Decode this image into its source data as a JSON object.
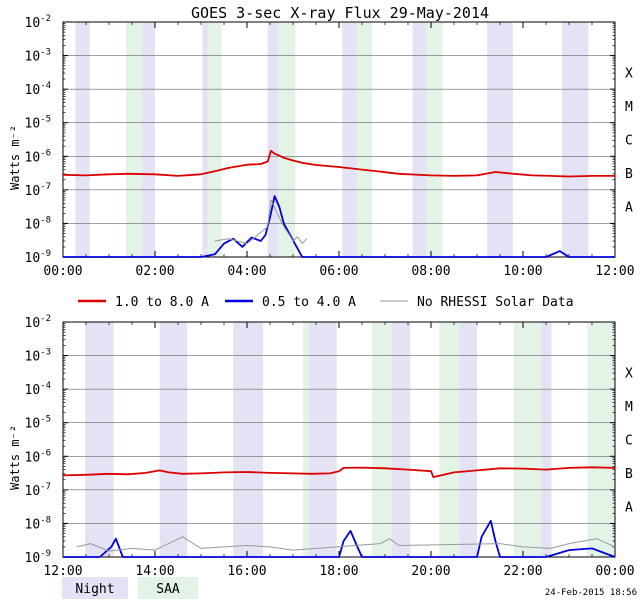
{
  "chart_data": [
    {
      "type": "line",
      "title": "GOES 3-sec X-ray Flux   29-May-2014",
      "ylabel": "Watts m⁻²",
      "y_scale": "log",
      "ylim": [
        1e-09,
        0.01
      ],
      "xlim": [
        0,
        12
      ],
      "x_units": "hours",
      "x_ticks": [
        0,
        2,
        4,
        6,
        8,
        10,
        12
      ],
      "x_tick_labels": [
        "00:00",
        "02:00",
        "04:00",
        "06:00",
        "08:00",
        "10:00",
        "12:00"
      ],
      "y_ticks": [
        1e-09,
        1e-08,
        1e-07,
        1e-06,
        1e-05,
        0.0001,
        0.001,
        0.01
      ],
      "y_tick_labels": [
        {
          "base": "10",
          "exp": "-9"
        },
        {
          "base": "10",
          "exp": "-8"
        },
        {
          "base": "10",
          "exp": "-7"
        },
        {
          "base": "10",
          "exp": "-6"
        },
        {
          "base": "10",
          "exp": "-5"
        },
        {
          "base": "10",
          "exp": "-4"
        },
        {
          "base": "10",
          "exp": "-3"
        },
        {
          "base": "10",
          "exp": "-2"
        }
      ],
      "class_labels": [
        {
          "label": "X",
          "at": 0.0001
        },
        {
          "label": "M",
          "at": 1e-05
        },
        {
          "label": "C",
          "at": 1e-06
        },
        {
          "label": "B",
          "at": 1e-07
        },
        {
          "label": "A",
          "at": 1e-08
        }
      ],
      "grid": true,
      "shaded_intervals": [
        {
          "kind": "night",
          "start": 0.27,
          "end": 0.58
        },
        {
          "kind": "saa",
          "start": 1.37,
          "end": 1.72
        },
        {
          "kind": "night",
          "start": 1.72,
          "end": 2.0
        },
        {
          "kind": "night",
          "start": 3.03,
          "end": 3.15
        },
        {
          "kind": "saa",
          "start": 3.15,
          "end": 3.45
        },
        {
          "kind": "night",
          "start": 4.45,
          "end": 4.68
        },
        {
          "kind": "saa",
          "start": 4.68,
          "end": 5.05
        },
        {
          "kind": "night",
          "start": 6.07,
          "end": 6.38
        },
        {
          "kind": "saa",
          "start": 6.38,
          "end": 6.72
        },
        {
          "kind": "night",
          "start": 7.6,
          "end": 7.9
        },
        {
          "kind": "saa",
          "start": 7.9,
          "end": 8.25
        },
        {
          "kind": "night",
          "start": 9.22,
          "end": 9.78
        },
        {
          "kind": "night",
          "start": 10.85,
          "end": 11.42
        }
      ],
      "series": [
        {
          "key": "long",
          "color": "#dd0000",
          "x": [
            0,
            0.5,
            1.0,
            1.4,
            2.0,
            2.5,
            3.0,
            3.3,
            3.6,
            4.0,
            4.3,
            4.45,
            4.52,
            4.6,
            4.7,
            4.8,
            5.0,
            5.2,
            5.5,
            6.0,
            6.5,
            6.9,
            7.3,
            8.0,
            8.5,
            9.0,
            9.4,
            9.8,
            10.2,
            10.6,
            11.0,
            11.5,
            12.0
          ],
          "y": [
            2.8e-07,
            2.7e-07,
            2.9e-07,
            3e-07,
            2.9e-07,
            2.6e-07,
            2.9e-07,
            3.6e-07,
            4.5e-07,
            5.6e-07,
            5.9e-07,
            7e-07,
            1.45e-06,
            1.2e-06,
            1.05e-06,
            9e-07,
            7.5e-07,
            6.4e-07,
            5.5e-07,
            4.8e-07,
            4e-07,
            3.5e-07,
            3e-07,
            2.7e-07,
            2.6e-07,
            2.7e-07,
            3.4e-07,
            3e-07,
            2.7e-07,
            2.6e-07,
            2.5e-07,
            2.6e-07,
            2.6e-07
          ]
        },
        {
          "key": "short",
          "color": "#0000dd",
          "x": [
            0,
            0.1,
            0.5,
            1.0,
            1.5,
            2.0,
            2.5,
            3.0,
            3.3,
            3.5,
            3.7,
            3.9,
            4.1,
            4.3,
            4.4,
            4.5,
            4.6,
            4.7,
            4.8,
            5.2,
            5.6,
            6.0,
            6.4,
            7.0,
            7.6,
            8.0,
            8.5,
            9.0,
            9.5,
            10.0,
            10.5,
            10.8,
            11.0,
            11.5,
            12.0
          ],
          "y": [
            1e-09,
            1e-09,
            1e-09,
            1e-09,
            1e-09,
            1e-09,
            1e-09,
            1e-09,
            1.2e-09,
            2.5e-09,
            3.5e-09,
            2e-09,
            3.8e-09,
            3e-09,
            4.5e-09,
            1.5e-08,
            6.5e-08,
            3.2e-08,
            1e-08,
            1e-09,
            1e-09,
            1e-09,
            1e-09,
            1e-09,
            1e-09,
            1e-09,
            1e-09,
            1e-09,
            1e-09,
            1e-09,
            1e-09,
            1.5e-09,
            1e-09,
            1e-09,
            1e-09
          ]
        },
        {
          "key": "norhessi",
          "color": "#999999",
          "x": [
            3.3,
            3.6,
            4.0,
            4.45,
            4.52,
            4.6,
            4.7,
            4.8,
            4.9,
            5.0,
            5.1,
            5.2,
            5.3
          ],
          "y": [
            3e-09,
            3.5e-09,
            2.5e-09,
            8e-09,
            5e-08,
            3e-08,
            1.5e-08,
            8e-09,
            5e-09,
            3e-09,
            4e-09,
            2.5e-09,
            3.5e-09
          ]
        }
      ]
    },
    {
      "type": "line",
      "ylabel": "Watts m⁻²",
      "y_scale": "log",
      "ylim": [
        1e-09,
        0.01
      ],
      "xlim": [
        12,
        24
      ],
      "x_units": "hours",
      "x_ticks": [
        12,
        14,
        16,
        18,
        20,
        22,
        24
      ],
      "x_tick_labels": [
        "12:00",
        "14:00",
        "16:00",
        "18:00",
        "20:00",
        "22:00",
        "00:00"
      ],
      "y_ticks": [
        1e-09,
        1e-08,
        1e-07,
        1e-06,
        1e-05,
        0.0001,
        0.001,
        0.01
      ],
      "y_tick_labels": [
        {
          "base": "10",
          "exp": "-9"
        },
        {
          "base": "10",
          "exp": "-8"
        },
        {
          "base": "10",
          "exp": "-7"
        },
        {
          "base": "10",
          "exp": "-6"
        },
        {
          "base": "10",
          "exp": "-5"
        },
        {
          "base": "10",
          "exp": "-4"
        },
        {
          "base": "10",
          "exp": "-3"
        },
        {
          "base": "10",
          "exp": "-2"
        }
      ],
      "class_labels": [
        {
          "label": "X",
          "at": 0.0001
        },
        {
          "label": "M",
          "at": 1e-05
        },
        {
          "label": "C",
          "at": 1e-06
        },
        {
          "label": "B",
          "at": 1e-07
        },
        {
          "label": "A",
          "at": 1e-08
        }
      ],
      "grid": true,
      "shaded_intervals": [
        {
          "kind": "night",
          "start": 12.48,
          "end": 13.1
        },
        {
          "kind": "night",
          "start": 14.1,
          "end": 14.7
        },
        {
          "kind": "night",
          "start": 15.7,
          "end": 16.35
        },
        {
          "kind": "saa",
          "start": 17.22,
          "end": 17.35
        },
        {
          "kind": "night",
          "start": 17.35,
          "end": 17.95
        },
        {
          "kind": "saa",
          "start": 18.72,
          "end": 19.15
        },
        {
          "kind": "night",
          "start": 19.15,
          "end": 19.55
        },
        {
          "kind": "saa",
          "start": 20.18,
          "end": 20.62
        },
        {
          "kind": "night",
          "start": 20.62,
          "end": 21.0
        },
        {
          "kind": "saa",
          "start": 21.8,
          "end": 22.4
        },
        {
          "kind": "night",
          "start": 22.4,
          "end": 22.62
        },
        {
          "kind": "saa",
          "start": 23.4,
          "end": 24.0
        }
      ],
      "series": [
        {
          "key": "long",
          "color": "#dd0000",
          "x": [
            12,
            12.5,
            13.0,
            13.4,
            13.8,
            14.1,
            14.3,
            14.6,
            15.0,
            15.5,
            16.0,
            16.5,
            17.0,
            17.4,
            17.8,
            18.0,
            18.1,
            18.5,
            19.0,
            19.5,
            20.0,
            20.05,
            20.5,
            21.0,
            21.5,
            22.0,
            22.5,
            23.0,
            23.5,
            24.0
          ],
          "y": [
            2.7e-07,
            2.8e-07,
            3e-07,
            2.9e-07,
            3.2e-07,
            3.8e-07,
            3.3e-07,
            3e-07,
            3.1e-07,
            3.3e-07,
            3.4e-07,
            3.2e-07,
            3.1e-07,
            3e-07,
            3.1e-07,
            3.6e-07,
            4.5e-07,
            4.6e-07,
            4.4e-07,
            4e-07,
            3.6e-07,
            2.4e-07,
            3.3e-07,
            3.8e-07,
            4.4e-07,
            4.3e-07,
            4e-07,
            4.5e-07,
            4.7e-07,
            4.5e-07
          ]
        },
        {
          "key": "short",
          "color": "#0000dd",
          "x": [
            12,
            12.8,
            13.05,
            13.15,
            13.3,
            14.0,
            15.0,
            16.0,
            17.0,
            17.5,
            18.0,
            18.1,
            18.25,
            18.4,
            18.5,
            19.0,
            20.0,
            21.0,
            21.1,
            21.3,
            21.4,
            21.5,
            22.0,
            22.5,
            23.0,
            23.5,
            24.0
          ],
          "y": [
            1e-09,
            1e-09,
            2e-09,
            3.5e-09,
            1e-09,
            1e-09,
            1e-09,
            1e-09,
            1e-09,
            1e-09,
            1e-09,
            3e-09,
            6e-09,
            2e-09,
            1e-09,
            1e-09,
            1e-09,
            1e-09,
            4e-09,
            1.2e-08,
            3e-09,
            1e-09,
            1e-09,
            1e-09,
            1.6e-09,
            1.8e-09,
            1e-09
          ]
        },
        {
          "key": "norhessi",
          "color": "#999999",
          "x": [
            12.3,
            12.6,
            13.0,
            13.5,
            14.0,
            14.6,
            15.0,
            15.5,
            16.0,
            16.5,
            17.0,
            18.9,
            19.1,
            19.3,
            21.5,
            22.0,
            22.6,
            23.0,
            23.6,
            24.0
          ],
          "y": [
            2e-09,
            2.5e-09,
            1.5e-09,
            1.8e-09,
            1.6e-09,
            4e-09,
            1.8e-09,
            2e-09,
            2.2e-09,
            2e-09,
            1.6e-09,
            2.5e-09,
            3.5e-09,
            2.2e-09,
            2.5e-09,
            2e-09,
            1.8e-09,
            2.5e-09,
            3.5e-09,
            2e-09
          ]
        }
      ]
    }
  ],
  "legend": {
    "items": [
      {
        "key": "long",
        "label": "1.0 to 8.0 A",
        "color": "#dd0000"
      },
      {
        "key": "short",
        "label": "0.5 to 4.0 A",
        "color": "#0000dd"
      },
      {
        "key": "norhessi",
        "label": "No RHESSI Solar Data",
        "color": "#999999"
      }
    ]
  },
  "shading_legend": {
    "night": {
      "label": "Night",
      "color": "#e3e3f5"
    },
    "saa": {
      "label": "SAA",
      "color": "#e3f4e6"
    }
  },
  "timestamp": "24-Feb-2015 18:56"
}
